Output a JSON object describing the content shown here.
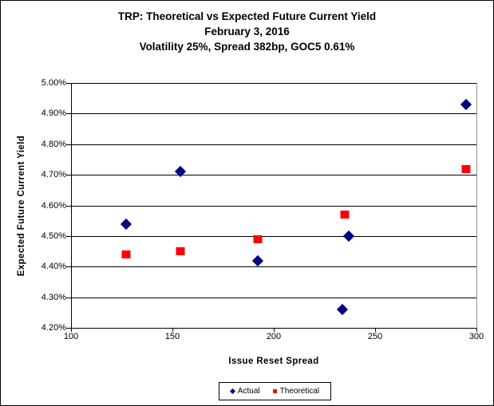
{
  "title": {
    "line1": "TRP: Theoretical vs Expected Future Current Yield",
    "line2": "February 3, 2016",
    "line3": "Volatility 25%, Spread 382bp, GOC5 0.61%"
  },
  "chart_data": {
    "type": "scatter",
    "title": "TRP: Theoretical vs Expected Future Current Yield",
    "subtitle": [
      "February 3, 2016",
      "Volatility 25%, Spread 382bp, GOC5 0.61%"
    ],
    "xlabel": "Issue Reset Spread",
    "ylabel": "Expected Future Current Yield",
    "xlim": [
      100,
      300
    ],
    "ylim": [
      4.2,
      5.0
    ],
    "xticks": [
      100,
      150,
      200,
      250,
      300
    ],
    "yticks": [
      4.2,
      4.3,
      4.4,
      4.5,
      4.6,
      4.7,
      4.8,
      4.9,
      5.0
    ],
    "ytick_labels": [
      "4.20%",
      "4.30%",
      "4.40%",
      "4.50%",
      "4.60%",
      "4.70%",
      "4.80%",
      "4.90%",
      "5.00%"
    ],
    "grid": true,
    "legend_position": "bottom",
    "series": [
      {
        "name": "Actual",
        "marker": "diamond",
        "color": "#000080",
        "points": [
          [
            127,
            4.54
          ],
          [
            154,
            4.71
          ],
          [
            192,
            4.42
          ],
          [
            234,
            4.26
          ],
          [
            237,
            4.5
          ],
          [
            295,
            4.93
          ]
        ]
      },
      {
        "name": "Theoretical",
        "marker": "square",
        "color": "#ff0000",
        "points": [
          [
            127,
            4.44
          ],
          [
            154,
            4.45
          ],
          [
            192,
            4.49
          ],
          [
            235,
            4.57
          ],
          [
            295,
            4.72
          ]
        ]
      }
    ]
  },
  "colors": {
    "actual": "#000080",
    "theoretical": "#ff0000",
    "gridline": "#000000",
    "plot_border": "#969696",
    "frame_border": "#000000"
  }
}
